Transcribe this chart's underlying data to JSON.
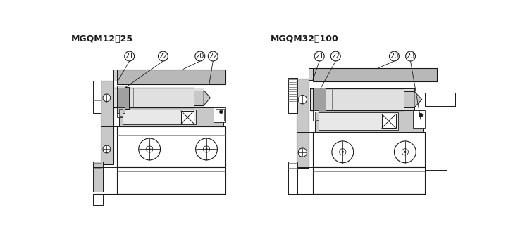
{
  "title_left": "MGQM12＾25",
  "title_right": "MGQM32＾100",
  "bg_color": "#ffffff",
  "lc": "#1a1a1a",
  "gray_top": "#b8b8b8",
  "gray_mid": "#c8c8c8",
  "gray_dark": "#909090",
  "gray_seal": "#a0a0a0"
}
